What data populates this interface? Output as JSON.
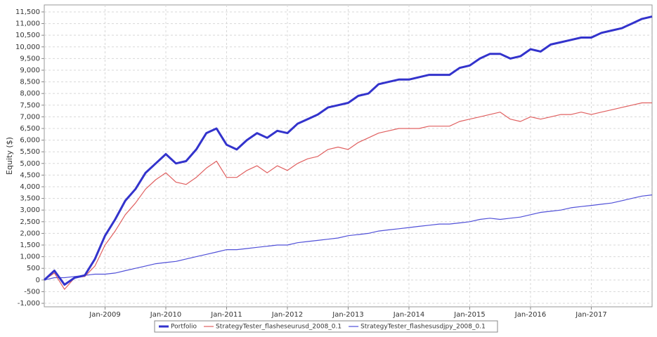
{
  "chart_data": {
    "type": "line",
    "y_label": "Equity ($)",
    "x": [
      "2008-01",
      "2008-03",
      "2008-05",
      "2008-07",
      "2008-09",
      "2008-11",
      "2009-01",
      "2009-03",
      "2009-05",
      "2009-07",
      "2009-09",
      "2009-11",
      "2010-01",
      "2010-03",
      "2010-05",
      "2010-07",
      "2010-09",
      "2010-11",
      "2011-01",
      "2011-03",
      "2011-05",
      "2011-07",
      "2011-09",
      "2011-11",
      "2012-01",
      "2012-03",
      "2012-05",
      "2012-07",
      "2012-09",
      "2012-11",
      "2013-01",
      "2013-03",
      "2013-05",
      "2013-07",
      "2013-09",
      "2013-11",
      "2014-01",
      "2014-03",
      "2014-05",
      "2014-07",
      "2014-09",
      "2014-11",
      "2015-01",
      "2015-03",
      "2015-05",
      "2015-07",
      "2015-09",
      "2015-11",
      "2016-01",
      "2016-03",
      "2016-05",
      "2016-07",
      "2016-09",
      "2016-11",
      "2017-01",
      "2017-03",
      "2017-05",
      "2017-07",
      "2017-09",
      "2017-11",
      "2018-01"
    ],
    "xlim": [
      "2008-01",
      "2018-01"
    ],
    "xticks": [
      {
        "value": "2009-01",
        "label": "Jan-2009"
      },
      {
        "value": "2010-01",
        "label": "Jan-2010"
      },
      {
        "value": "2011-01",
        "label": "Jan-2011"
      },
      {
        "value": "2012-01",
        "label": "Jan-2012"
      },
      {
        "value": "2013-01",
        "label": "Jan-2013"
      },
      {
        "value": "2014-01",
        "label": "Jan-2014"
      },
      {
        "value": "2015-01",
        "label": "Jan-2015"
      },
      {
        "value": "2016-01",
        "label": "Jan-2016"
      },
      {
        "value": "2017-01",
        "label": "Jan-2017"
      }
    ],
    "ylim": [
      -1150,
      11800
    ],
    "yticks": [
      {
        "value": -1000,
        "label": "-1,000"
      },
      -500,
      0,
      500,
      {
        "value": 1000,
        "label": "1,000"
      },
      {
        "value": 1500,
        "label": "1,500"
      },
      {
        "value": 2000,
        "label": "2,000"
      },
      {
        "value": 2500,
        "label": "2,500"
      },
      {
        "value": 3000,
        "label": "3,000"
      },
      {
        "value": 3500,
        "label": "3,500"
      },
      {
        "value": 4000,
        "label": "4,000"
      },
      {
        "value": 4500,
        "label": "4,500"
      },
      {
        "value": 5000,
        "label": "5,000"
      },
      {
        "value": 5500,
        "label": "5,500"
      },
      {
        "value": 6000,
        "label": "6,000"
      },
      {
        "value": 6500,
        "label": "6,500"
      },
      {
        "value": 7000,
        "label": "7,000"
      },
      {
        "value": 7500,
        "label": "7,500"
      },
      {
        "value": 8000,
        "label": "8,000"
      },
      {
        "value": 8500,
        "label": "8,500"
      },
      {
        "value": 9000,
        "label": "9,000"
      },
      {
        "value": 9500,
        "label": "9,500"
      },
      {
        "value": 10000,
        "label": "10,000"
      },
      {
        "value": 10500,
        "label": "10,500"
      },
      {
        "value": 11000,
        "label": "11,000"
      },
      {
        "value": 11500,
        "label": "11,500"
      }
    ],
    "grid": true,
    "series": [
      {
        "name": "Portfolio",
        "color": "#3333cc",
        "width": 3,
        "values": [
          0,
          400,
          -200,
          100,
          200,
          900,
          1900,
          2600,
          3400,
          3900,
          4600,
          5000,
          5400,
          5000,
          5100,
          5600,
          6300,
          6500,
          5800,
          5600,
          6000,
          6300,
          6100,
          6400,
          6300,
          6700,
          6900,
          7100,
          7400,
          7500,
          7600,
          7900,
          8000,
          8400,
          8500,
          8600,
          8600,
          8700,
          8800,
          8800,
          8800,
          9100,
          9200,
          9500,
          9700,
          9700,
          9500,
          9600,
          9900,
          9800,
          10100,
          10200,
          10300,
          10400,
          10400,
          10600,
          10700,
          10800,
          11000,
          11200,
          11300
        ]
      },
      {
        "name": "StrategyTester_flasheseurusd_2008_0.1",
        "color": "#e06060",
        "width": 1.2,
        "values": [
          0,
          300,
          -400,
          100,
          150,
          600,
          1500,
          2100,
          2800,
          3300,
          3900,
          4300,
          4600,
          4200,
          4100,
          4400,
          4800,
          5100,
          4400,
          4400,
          4700,
          4900,
          4600,
          4900,
          4700,
          5000,
          5200,
          5300,
          5600,
          5700,
          5600,
          5900,
          6100,
          6300,
          6400,
          6500,
          6500,
          6500,
          6600,
          6600,
          6600,
          6800,
          6900,
          7000,
          7100,
          7200,
          6900,
          6800,
          7000,
          6900,
          7000,
          7100,
          7100,
          7200,
          7100,
          7200,
          7300,
          7400,
          7500,
          7600,
          7600
        ]
      },
      {
        "name": "StrategyTester_flashesusdjpy_2008_0.1",
        "color": "#5050d8",
        "width": 1.2,
        "values": [
          0,
          100,
          100,
          150,
          200,
          250,
          250,
          300,
          400,
          500,
          600,
          700,
          750,
          800,
          900,
          1000,
          1100,
          1200,
          1300,
          1300,
          1350,
          1400,
          1450,
          1500,
          1500,
          1600,
          1650,
          1700,
          1750,
          1800,
          1900,
          1950,
          2000,
          2100,
          2150,
          2200,
          2250,
          2300,
          2350,
          2400,
          2400,
          2450,
          2500,
          2600,
          2650,
          2600,
          2650,
          2700,
          2800,
          2900,
          2950,
          3000,
          3100,
          3150,
          3200,
          3250,
          3300,
          3400,
          3500,
          3600,
          3650
        ]
      }
    ]
  }
}
